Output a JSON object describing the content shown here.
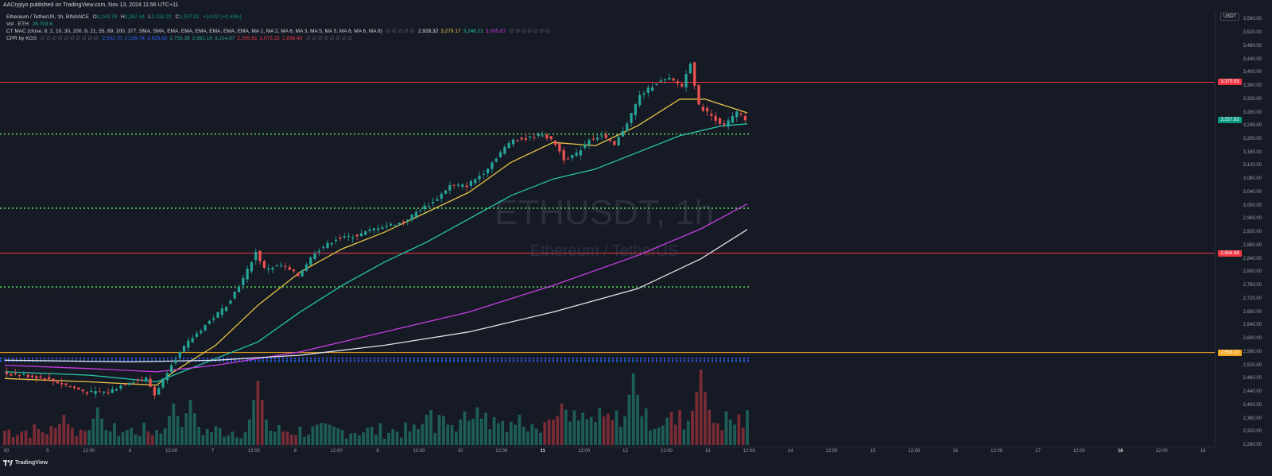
{
  "header": {
    "caption": "AACrypyo published on TradingView.com, Nov 13, 2024 11:56 UTC+11"
  },
  "legend": {
    "symbol_line": "Ethereum / TetherUS, 1h, BINANCE",
    "ohlc": {
      "o_label": "O",
      "o": "3,243.79",
      "h_label": "H",
      "h": "3,267.34",
      "l_label": "L",
      "l": "3,232.22",
      "c_label": "C",
      "c": "3,257.82",
      "change": "+14.02 (+0.43%)"
    },
    "vol_label": "Vol · ETH",
    "vol_value": "26.703 K",
    "mac_label": "CT MAC (close, 8, 2, 10, 30, 200, 9, 21, 55, 89, 200, 377, SMA, SMA, EMA, EMA, EMA, EMA, EMA, EMA, MA 1, MA 2, MA 6, MA 3, MA 5, MA 5, MA 6, MA 6, MA 8)",
    "mac_dim1": "∅ ∅ ∅ ∅ ∅",
    "mac_values": [
      {
        "value": "2,928.32",
        "color": "#e0e3eb"
      },
      {
        "value": "3,279.17",
        "color": "#e8c547"
      },
      {
        "value": "3,246.21",
        "color": "#26c6a6"
      },
      {
        "value": "3,005.67",
        "color": "#c43de0"
      }
    ],
    "mac_dim2": "∅ ∅ ∅ ∅ ∅ ∅ ∅",
    "cpr_label": "CPR by KGS",
    "cpr_dim": "∅ ∅ ∅ ∅ ∅ ∅ ∅ ∅ ∅ ∅",
    "cpr_values": [
      {
        "value": "2,532.70",
        "color": "#2962ff"
      },
      {
        "value": "2,539.74",
        "color": "#2962ff"
      },
      {
        "value": "2,929.65",
        "color": "#2962ff"
      },
      {
        "value": "2,755.39",
        "color": "#26a69a"
      },
      {
        "value": "2,992.18",
        "color": "#26a69a"
      },
      {
        "value": "3,214.87",
        "color": "#26a69a"
      },
      {
        "value": "2,295.81",
        "color": "#f23645"
      },
      {
        "value": "2,073.22",
        "color": "#f23645"
      },
      {
        "value": "1,836.43",
        "color": "#f23645"
      }
    ],
    "cpr_dim2": "∅ ∅ ∅ ∅ ∅ ∅ ∅ ∅"
  },
  "watermark": {
    "symbol": "ETHUSDT, 1h",
    "name": "Ethereum / TetherUS"
  },
  "price_axis": {
    "currency": "USDT",
    "ticks": [
      "3,560.00",
      "3,520.00",
      "3,480.00",
      "3,440.00",
      "3,400.00",
      "3,360.00",
      "3,320.00",
      "3,280.00",
      "3,240.00",
      "3,200.00",
      "3,160.00",
      "3,120.00",
      "3,080.00",
      "3,040.00",
      "3,000.00",
      "2,960.00",
      "2,920.00",
      "2,880.00",
      "2,840.00",
      "2,800.00",
      "2,760.00",
      "2,720.00",
      "2,680.00",
      "2,640.00",
      "2,600.00",
      "2,560.00",
      "2,520.00",
      "2,480.00",
      "2,440.00",
      "2,400.00",
      "2,360.00",
      "2,320.00",
      "2,280.00"
    ],
    "tags": [
      {
        "label": "3,370.93",
        "price": 3370.93,
        "color": "#f23645"
      },
      {
        "label": "3,257.82",
        "price": 3257.82,
        "color": "#089981"
      },
      {
        "label": "2,856.88",
        "price": 2856.88,
        "color": "#f23645"
      },
      {
        "label": "2,558.23",
        "price": 2558.23,
        "color": "#f5a623"
      }
    ]
  },
  "time_axis": {
    "ticks": [
      {
        "label": "00",
        "bold": false
      },
      {
        "label": "5",
        "bold": false
      },
      {
        "label": "12:00",
        "bold": false
      },
      {
        "label": "6",
        "bold": false
      },
      {
        "label": "12:00",
        "bold": false
      },
      {
        "label": "7",
        "bold": false
      },
      {
        "label": "12:00",
        "bold": false
      },
      {
        "label": "8",
        "bold": false
      },
      {
        "label": "12:00",
        "bold": false
      },
      {
        "label": "9",
        "bold": false
      },
      {
        "label": "12:00",
        "bold": false
      },
      {
        "label": "10",
        "bold": false
      },
      {
        "label": "12:00",
        "bold": false
      },
      {
        "label": "11",
        "bold": true
      },
      {
        "label": "12:00",
        "bold": false
      },
      {
        "label": "12",
        "bold": false
      },
      {
        "label": "12:00",
        "bold": false
      },
      {
        "label": "13",
        "bold": false
      },
      {
        "label": "12:00",
        "bold": false
      },
      {
        "label": "14",
        "bold": false
      },
      {
        "label": "12:00",
        "bold": false
      },
      {
        "label": "15",
        "bold": false
      },
      {
        "label": "12:00",
        "bold": false
      },
      {
        "label": "16",
        "bold": false
      },
      {
        "label": "12:00",
        "bold": false
      },
      {
        "label": "17",
        "bold": false
      },
      {
        "label": "12:00",
        "bold": false
      },
      {
        "label": "18",
        "bold": true
      },
      {
        "label": "12:00",
        "bold": false
      },
      {
        "label": "19",
        "bold": false
      }
    ]
  },
  "footer": {
    "brand": "TradingView"
  },
  "chart_data": {
    "type": "candlestick",
    "symbol": "ETHUSDT",
    "interval": "1h",
    "ylim": [
      2280,
      3580
    ],
    "horizontal_levels": [
      {
        "price": 3370.93,
        "color": "#f23645",
        "style": "solid"
      },
      {
        "price": 3214.87,
        "color": "#4caf50",
        "style": "dotted"
      },
      {
        "price": 2992.18,
        "color": "#4caf50",
        "style": "dotted"
      },
      {
        "price": 2856.88,
        "color": "#f23645",
        "style": "solid"
      },
      {
        "price": 2755.39,
        "color": "#4caf50",
        "style": "dotted"
      },
      {
        "price": 2558.23,
        "color": "#f5a623",
        "style": "solid"
      },
      {
        "price": 2539.74,
        "color": "#2962ff",
        "style": "dotted"
      },
      {
        "price": 2532.7,
        "color": "#2962ff",
        "style": "dotted"
      }
    ],
    "price_path": [
      [
        0,
        2495
      ],
      [
        5,
        2490
      ],
      [
        10,
        2480
      ],
      [
        15,
        2460
      ],
      [
        20,
        2438
      ],
      [
        25,
        2440
      ],
      [
        30,
        2470
      ],
      [
        34,
        2480
      ],
      [
        36,
        2430
      ],
      [
        40,
        2525
      ],
      [
        44,
        2590
      ],
      [
        48,
        2640
      ],
      [
        53,
        2700
      ],
      [
        57,
        2780
      ],
      [
        60,
        2860
      ],
      [
        62,
        2810
      ],
      [
        66,
        2820
      ],
      [
        70,
        2790
      ],
      [
        74,
        2860
      ],
      [
        79,
        2900
      ],
      [
        84,
        2910
      ],
      [
        89,
        2935
      ],
      [
        95,
        2950
      ],
      [
        99,
        2990
      ],
      [
        102,
        3010
      ],
      [
        106,
        3060
      ],
      [
        110,
        3060
      ],
      [
        114,
        3100
      ],
      [
        118,
        3160
      ],
      [
        121,
        3200
      ],
      [
        124,
        3200
      ],
      [
        128,
        3215
      ],
      [
        131,
        3185
      ],
      [
        133,
        3140
      ],
      [
        136,
        3155
      ],
      [
        139,
        3200
      ],
      [
        142,
        3210
      ],
      [
        145,
        3180
      ],
      [
        148,
        3250
      ],
      [
        151,
        3330
      ],
      [
        155,
        3370
      ],
      [
        158,
        3380
      ],
      [
        161,
        3360
      ],
      [
        163,
        3430
      ],
      [
        165,
        3300
      ],
      [
        168,
        3270
      ],
      [
        171,
        3240
      ],
      [
        174,
        3280
      ],
      [
        176,
        3258
      ]
    ],
    "series": [
      {
        "name": "3,279.17",
        "color": "#e8c547",
        "values": [
          [
            0,
            2480
          ],
          [
            20,
            2470
          ],
          [
            36,
            2460
          ],
          [
            40,
            2500
          ],
          [
            50,
            2580
          ],
          [
            60,
            2700
          ],
          [
            70,
            2800
          ],
          [
            80,
            2870
          ],
          [
            90,
            2920
          ],
          [
            100,
            2980
          ],
          [
            110,
            3040
          ],
          [
            120,
            3130
          ],
          [
            130,
            3190
          ],
          [
            140,
            3180
          ],
          [
            150,
            3240
          ],
          [
            160,
            3320
          ],
          [
            166,
            3320
          ],
          [
            176,
            3279
          ]
        ]
      },
      {
        "name": "3,246.21",
        "color": "#26c6a6",
        "values": [
          [
            0,
            2500
          ],
          [
            20,
            2490
          ],
          [
            36,
            2470
          ],
          [
            46,
            2520
          ],
          [
            60,
            2590
          ],
          [
            70,
            2680
          ],
          [
            80,
            2760
          ],
          [
            90,
            2830
          ],
          [
            100,
            2890
          ],
          [
            110,
            2960
          ],
          [
            120,
            3030
          ],
          [
            130,
            3080
          ],
          [
            140,
            3110
          ],
          [
            150,
            3160
          ],
          [
            160,
            3210
          ],
          [
            170,
            3240
          ],
          [
            176,
            3246
          ]
        ]
      },
      {
        "name": "3,005.67",
        "color": "#c43de0",
        "values": [
          [
            0,
            2520
          ],
          [
            20,
            2510
          ],
          [
            36,
            2500
          ],
          [
            50,
            2520
          ],
          [
            70,
            2560
          ],
          [
            90,
            2620
          ],
          [
            110,
            2680
          ],
          [
            130,
            2760
          ],
          [
            150,
            2850
          ],
          [
            165,
            2930
          ],
          [
            176,
            3005
          ]
        ]
      },
      {
        "name": "2,928.32",
        "color": "#e0e3eb",
        "values": [
          [
            0,
            2535
          ],
          [
            30,
            2530
          ],
          [
            50,
            2535
          ],
          [
            70,
            2550
          ],
          [
            90,
            2580
          ],
          [
            110,
            2620
          ],
          [
            130,
            2680
          ],
          [
            150,
            2750
          ],
          [
            165,
            2840
          ],
          [
            176,
            2928
          ]
        ]
      }
    ],
    "volume_bars": [
      {
        "start": 0,
        "heights": [
          3,
          4,
          3,
          5,
          4,
          3,
          6,
          5,
          4,
          3
        ]
      },
      {
        "peaks": [
          [
            14,
            0.4
          ],
          [
            22,
            0.5
          ],
          [
            40,
            0.55
          ],
          [
            44,
            0.6
          ],
          [
            60,
            0.85
          ],
          [
            100,
            0.4
          ],
          [
            112,
            0.5
          ],
          [
            132,
            0.55
          ],
          [
            149,
            0.95
          ],
          [
            164,
            0.65
          ],
          [
            165,
            1.0
          ]
        ]
      }
    ]
  }
}
